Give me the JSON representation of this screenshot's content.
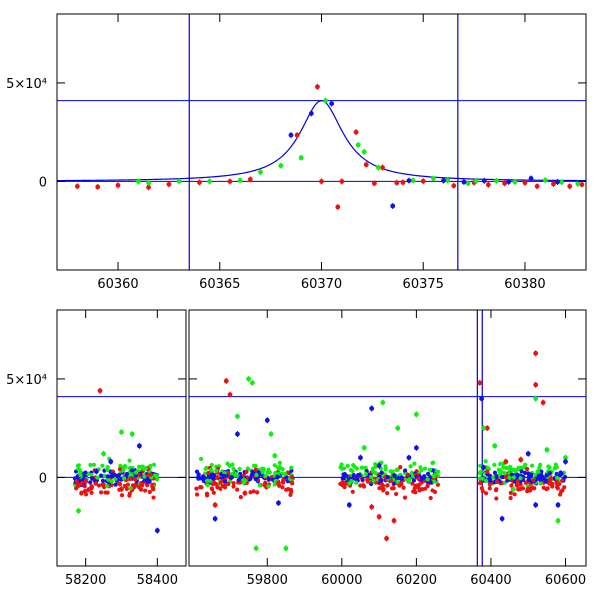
{
  "colors": {
    "frame": "#000000",
    "model": "#0000dd",
    "red": "#ee1111",
    "green": "#11ee11",
    "blue": "#1111ee"
  },
  "chart_data": [
    {
      "type": "scatter",
      "title": "",
      "xlabel": "",
      "ylabel": "",
      "xlim": [
        60357,
        60383
      ],
      "ylim": [
        -45000,
        85000
      ],
      "x_ticks": [
        60360,
        60365,
        60370,
        60375,
        60380
      ],
      "x_tick_labels": [
        "60360",
        "60365",
        "60370",
        "60375",
        "60380"
      ],
      "y_ticks": [
        0,
        50000
      ],
      "y_tick_labels": [
        "0",
        "5×10⁴"
      ],
      "hlines": [
        0,
        41000
      ],
      "vlines": [
        60363.5,
        60376.7
      ],
      "model": {
        "type": "peak",
        "t0": 60370.0,
        "peak": 41000,
        "width": 1.3
      },
      "series": [
        {
          "color": "red",
          "points": [
            [
              60358.0,
              -2500
            ],
            [
              60359.0,
              -2800
            ],
            [
              60360.0,
              -2000
            ],
            [
              60361.5,
              -3000
            ],
            [
              60362.5,
              -1500
            ],
            [
              60364.0,
              -500
            ],
            [
              60365.5,
              0
            ],
            [
              60366.5,
              1000
            ],
            [
              60368.8,
              23500
            ],
            [
              60369.8,
              48000
            ],
            [
              60370.0,
              0
            ],
            [
              60370.8,
              -13000
            ],
            [
              60371.0,
              0
            ],
            [
              60371.7,
              25000
            ],
            [
              60372.2,
              8500
            ],
            [
              60372.6,
              -1000
            ],
            [
              60373.0,
              7000
            ],
            [
              60373.7,
              -700
            ],
            [
              60374.0,
              -500
            ],
            [
              60375.0,
              100
            ],
            [
              60376.5,
              -2200
            ],
            [
              60377.5,
              -600
            ],
            [
              60378.2,
              -1700
            ],
            [
              60379.0,
              -1000
            ],
            [
              60380.0,
              -700
            ],
            [
              60380.6,
              -2500
            ],
            [
              60381.4,
              -1300
            ],
            [
              60382.2,
              -2500
            ],
            [
              60382.8,
              -1600
            ]
          ]
        },
        {
          "color": "green",
          "points": [
            [
              60361.0,
              0
            ],
            [
              60361.5,
              -700
            ],
            [
              60363.0,
              100
            ],
            [
              60364.5,
              0
            ],
            [
              60366.0,
              500
            ],
            [
              60367.0,
              4700
            ],
            [
              60368.0,
              8000
            ],
            [
              60369.0,
              12000
            ],
            [
              60370.2,
              41000
            ],
            [
              60371.8,
              18500
            ],
            [
              60372.1,
              15000
            ],
            [
              60372.8,
              7000
            ],
            [
              60374.5,
              400
            ],
            [
              60375.5,
              1500
            ],
            [
              60376.2,
              500
            ],
            [
              60377.2,
              -1000
            ],
            [
              60377.6,
              200
            ],
            [
              60378.6,
              300
            ],
            [
              60379.5,
              -200
            ],
            [
              60381.0,
              600
            ],
            [
              60381.8,
              -400
            ],
            [
              60382.6,
              -1200
            ]
          ]
        },
        {
          "color": "blue",
          "points": [
            [
              60368.5,
              23500
            ],
            [
              60369.5,
              34500
            ],
            [
              60370.5,
              39500
            ],
            [
              60373.5,
              -12500
            ],
            [
              60374.3,
              400
            ],
            [
              60376.0,
              400
            ],
            [
              60377.0,
              -300
            ],
            [
              60378.0,
              300
            ],
            [
              60379.2,
              -200
            ],
            [
              60380.3,
              1500
            ],
            [
              60381.6,
              -300
            ]
          ]
        }
      ]
    },
    {
      "type": "scatter",
      "title": "",
      "xlabel": "",
      "ylabel": "",
      "xlim": [
        58120,
        60655
      ],
      "ylim": [
        -45000,
        85000
      ],
      "x_ticks": [
        58200,
        58400,
        59800,
        60000,
        60200,
        60400,
        60600
      ],
      "x_tick_labels": [
        "58200",
        "58400",
        "59800",
        "60000",
        "60200",
        "60400",
        "60600"
      ],
      "y_ticks": [
        0,
        50000
      ],
      "y_tick_labels": [
        "0",
        "5×10⁴"
      ],
      "hlines": [
        0,
        41000
      ],
      "vlines": [
        60363.5,
        60376.7
      ],
      "series": [
        {
          "color": "red",
          "points": [
            [
              58240,
              44000
            ],
            [
              58200,
              -2000
            ],
            [
              58300,
              -6000
            ],
            [
              58350,
              -5000
            ],
            [
              58180,
              -4000
            ],
            [
              59660,
              -14000
            ],
            [
              59690,
              49000
            ],
            [
              59700,
              42000
            ],
            [
              59740,
              -8000
            ],
            [
              59830,
              -3000
            ],
            [
              60120,
              -31000
            ],
            [
              60140,
              -22000
            ],
            [
              60080,
              -15000
            ],
            [
              60100,
              -20000
            ],
            [
              60370,
              48000
            ],
            [
              60390,
              25000
            ],
            [
              60520,
              63000
            ],
            [
              60520,
              47000
            ],
            [
              60540,
              38000
            ],
            [
              60470,
              -4000
            ],
            [
              60500,
              -6000
            ],
            [
              60560,
              -3000
            ],
            [
              60440,
              8000
            ],
            [
              60480,
              9000
            ]
          ]
        },
        {
          "color": "green",
          "points": [
            [
              58180,
              -17000
            ],
            [
              58250,
              12000
            ],
            [
              58300,
              23000
            ],
            [
              58330,
              22000
            ],
            [
              59750,
              50000
            ],
            [
              59760,
              48000
            ],
            [
              59850,
              -36000
            ],
            [
              59770,
              -36000
            ],
            [
              59720,
              31000
            ],
            [
              59810,
              22000
            ],
            [
              59820,
              11000
            ],
            [
              60110,
              38000
            ],
            [
              60200,
              32000
            ],
            [
              60150,
              25000
            ],
            [
              60060,
              15000
            ],
            [
              60380,
              25000
            ],
            [
              60410,
              16000
            ],
            [
              60520,
              40000
            ],
            [
              60550,
              14000
            ],
            [
              60580,
              -22000
            ],
            [
              60460,
              -6000
            ],
            [
              60600,
              10000
            ]
          ]
        },
        {
          "color": "blue",
          "points": [
            [
              58350,
              16000
            ],
            [
              58400,
              -27000
            ],
            [
              58270,
              8000
            ],
            [
              58230,
              3000
            ],
            [
              59720,
              22000
            ],
            [
              59800,
              29000
            ],
            [
              59830,
              -13000
            ],
            [
              59660,
              -21000
            ],
            [
              60020,
              -14000
            ],
            [
              60050,
              10000
            ],
            [
              60080,
              35000
            ],
            [
              60100,
              6000
            ],
            [
              60180,
              10000
            ],
            [
              60200,
              15000
            ],
            [
              60375,
              40000
            ],
            [
              60380,
              5000
            ],
            [
              60430,
              -21000
            ],
            [
              60520,
              -14000
            ],
            [
              60580,
              -14000
            ],
            [
              60600,
              8000
            ],
            [
              60500,
              12000
            ]
          ]
        }
      ]
    }
  ]
}
